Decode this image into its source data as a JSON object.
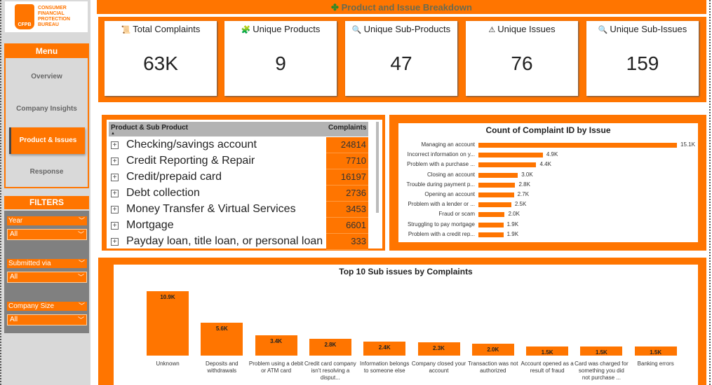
{
  "logo": {
    "text": "CONSUMER FINANCIAL PROTECTION BUREAU",
    "abbr": "CFPB"
  },
  "menu": {
    "title": "Menu",
    "items": [
      {
        "label": "Overview"
      },
      {
        "label": "Company Insights"
      },
      {
        "label": "Product & Issues",
        "active": true
      },
      {
        "label": "Response"
      }
    ]
  },
  "filters": {
    "title": "FILTERS",
    "items": [
      {
        "label": "Year",
        "value": "All"
      },
      {
        "label": "Submitted via",
        "value": "All"
      },
      {
        "label": "Company Size",
        "value": "All"
      }
    ]
  },
  "page_title": "Product and Issue Breakdown",
  "kpis": [
    {
      "icon": "scroll-icon",
      "glyph": "📜",
      "label": "Total Complaints",
      "value": "63K"
    },
    {
      "icon": "puzzle-icon",
      "glyph": "🧩",
      "label": "Unique Products",
      "value": "9"
    },
    {
      "icon": "search-icon",
      "glyph": "🔍",
      "label": "Unique Sub-Products",
      "value": "47"
    },
    {
      "icon": "warning-icon",
      "glyph": "⚠",
      "label": "Unique Issues",
      "value": "76"
    },
    {
      "icon": "search-icon",
      "glyph": "🔍",
      "label": "Unique Sub-Issues",
      "value": "159"
    }
  ],
  "table": {
    "headers": [
      "Product & Sub Product",
      "Complaints"
    ],
    "rows": [
      {
        "name": "Checking/savings account",
        "count": "24814"
      },
      {
        "name": "Credit Reporting & Repair",
        "count": "7710"
      },
      {
        "name": "Credit/prepaid card",
        "count": "16197"
      },
      {
        "name": "Debt collection",
        "count": "2736"
      },
      {
        "name": "Money Transfer & Virtual Services",
        "count": "3453"
      },
      {
        "name": "Mortgage",
        "count": "6601"
      },
      {
        "name": "Payday loan, title loan, or personal loan",
        "count": "333"
      }
    ]
  },
  "chart_data": [
    {
      "type": "bar",
      "orientation": "horizontal",
      "title": "Count of Complaint ID by Issue",
      "categories": [
        "Managing an account",
        "Incorrect information on y...",
        "Problem with a purchase ...",
        "Closing an account",
        "Trouble during payment p...",
        "Opening an account",
        "Problem with a lender or ...",
        "Fraud or scam",
        "Struggling to pay mortgage",
        "Problem with a credit rep..."
      ],
      "values": [
        15100,
        4900,
        4400,
        3000,
        2800,
        2700,
        2500,
        2000,
        1900,
        1900
      ],
      "labels": [
        "15.1K",
        "4.9K",
        "4.4K",
        "3.0K",
        "2.8K",
        "2.7K",
        "2.5K",
        "2.0K",
        "1.9K",
        "1.9K"
      ],
      "color": "#ff7500"
    },
    {
      "type": "bar",
      "orientation": "vertical",
      "title": "Top 10 Sub issues by Complaints",
      "categories": [
        "Unknown",
        "Deposits and withdrawals",
        "Problem using a debit or ATM card",
        "Credit card company isn't resolving a disput...",
        "Information belongs to someone else",
        "Company closed your account",
        "Transaction was not authorized",
        "Account opened as a result of fraud",
        "Card was charged for something you did not purchase ...",
        "Banking errors"
      ],
      "values": [
        10900,
        5600,
        3400,
        2800,
        2400,
        2300,
        2000,
        1500,
        1500,
        1500
      ],
      "labels": [
        "10.9K",
        "5.6K",
        "3.4K",
        "2.8K",
        "2.4K",
        "2.3K",
        "2.0K",
        "1.5K",
        "1.5K",
        "1.5K"
      ],
      "color": "#ff7500"
    }
  ]
}
